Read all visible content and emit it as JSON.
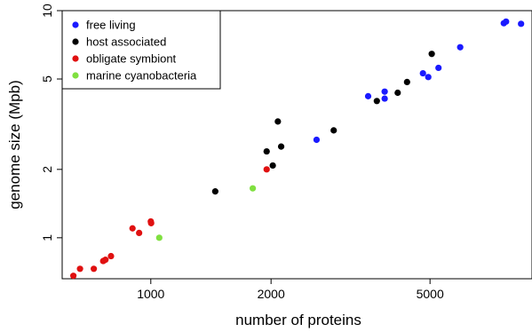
{
  "chart_data": {
    "type": "scatter",
    "xlabel": "number of proteins",
    "ylabel": "genome size (Mpb)",
    "xscale": "log",
    "yscale": "log",
    "xlim": [
      600,
      9000
    ],
    "ylim": [
      0.66,
      10
    ],
    "xticks": [
      1000,
      2000,
      5000
    ],
    "yticks": [
      1,
      2,
      5,
      10
    ],
    "legend_position": "top-left",
    "grid": false,
    "series": [
      {
        "name": "free living",
        "color": "#1a1aff",
        "points": [
          [
            2600,
            2.7
          ],
          [
            3500,
            4.2
          ],
          [
            3850,
            4.1
          ],
          [
            3850,
            4.4
          ],
          [
            4800,
            5.3
          ],
          [
            4950,
            5.1
          ],
          [
            5250,
            5.6
          ],
          [
            5950,
            6.9
          ],
          [
            7650,
            8.8
          ],
          [
            7750,
            8.95
          ],
          [
            8450,
            8.75
          ]
        ]
      },
      {
        "name": "host associated",
        "color": "#000000",
        "points": [
          [
            1450,
            1.6
          ],
          [
            1950,
            2.4
          ],
          [
            2020,
            2.08
          ],
          [
            2080,
            3.25
          ],
          [
            2120,
            2.52
          ],
          [
            2870,
            2.97
          ],
          [
            3680,
            4.0
          ],
          [
            4150,
            4.35
          ],
          [
            4380,
            4.85
          ],
          [
            5050,
            6.45
          ]
        ]
      },
      {
        "name": "obligate symbiont",
        "color": "#e01010",
        "points": [
          [
            640,
            0.68
          ],
          [
            665,
            0.73
          ],
          [
            720,
            0.73
          ],
          [
            760,
            0.79
          ],
          [
            770,
            0.8
          ],
          [
            795,
            0.83
          ],
          [
            900,
            1.1
          ],
          [
            935,
            1.05
          ],
          [
            1000,
            1.18
          ],
          [
            1002,
            1.16
          ],
          [
            1950,
            2.0
          ]
        ]
      },
      {
        "name": "marine cyanobacteria",
        "color": "#80e040",
        "points": [
          [
            1050,
            1.0
          ],
          [
            1800,
            1.65
          ]
        ]
      }
    ]
  }
}
